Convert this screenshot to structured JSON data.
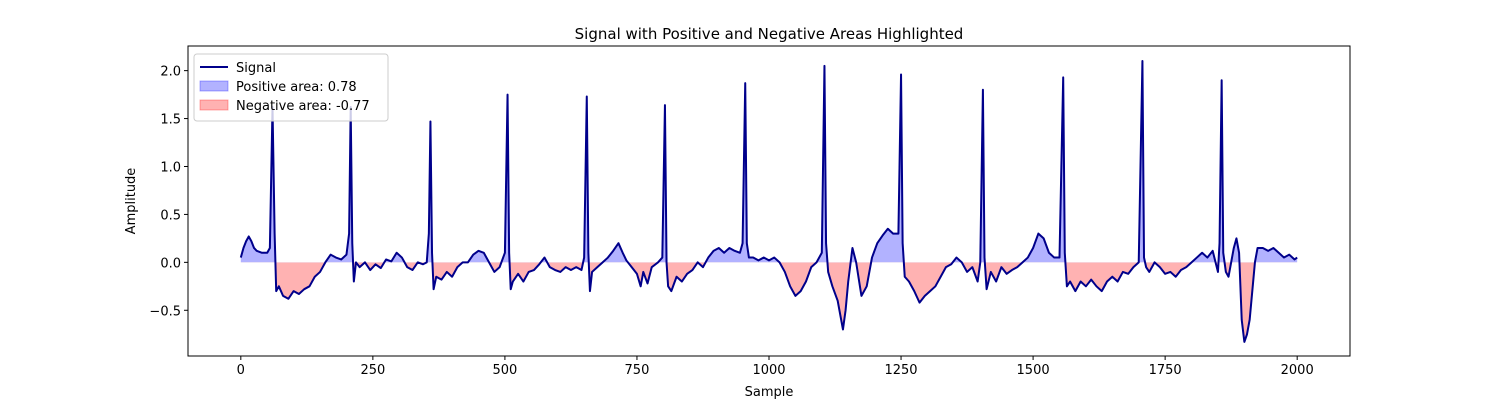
{
  "chart_data": {
    "type": "line",
    "title": "Signal with Positive and Negative Areas Highlighted",
    "xlabel": "Sample",
    "ylabel": "Amplitude",
    "x": [
      0,
      5,
      10,
      15,
      20,
      25,
      30,
      40,
      50,
      55,
      60,
      64,
      67,
      72,
      80,
      90,
      100,
      110,
      120,
      130,
      140,
      150,
      160,
      170,
      180,
      190,
      200,
      205,
      208,
      211,
      214,
      218,
      225,
      235,
      245,
      255,
      265,
      275,
      285,
      295,
      305,
      315,
      325,
      335,
      345,
      352,
      356,
      359,
      362,
      365,
      370,
      380,
      390,
      400,
      410,
      420,
      430,
      440,
      450,
      460,
      470,
      480,
      490,
      500,
      505,
      508,
      511,
      515,
      525,
      535,
      545,
      555,
      565,
      575,
      585,
      595,
      605,
      615,
      625,
      635,
      645,
      650,
      655,
      658,
      661,
      665,
      675,
      685,
      695,
      705,
      715,
      723,
      730,
      740,
      750,
      757,
      762,
      770,
      778,
      790,
      798,
      803,
      806,
      809,
      815,
      825,
      835,
      845,
      855,
      865,
      875,
      885,
      895,
      905,
      915,
      925,
      935,
      945,
      950,
      955,
      958,
      962,
      970,
      980,
      990,
      1000,
      1010,
      1020,
      1030,
      1040,
      1050,
      1060,
      1070,
      1080,
      1090,
      1100,
      1105,
      1108,
      1112,
      1120,
      1130,
      1140,
      1145,
      1150,
      1158,
      1165,
      1175,
      1185,
      1195,
      1205,
      1215,
      1225,
      1235,
      1245,
      1250,
      1253,
      1257,
      1265,
      1275,
      1285,
      1295,
      1305,
      1315,
      1325,
      1335,
      1345,
      1355,
      1365,
      1375,
      1385,
      1395,
      1400,
      1405,
      1408,
      1412,
      1420,
      1430,
      1440,
      1450,
      1460,
      1470,
      1480,
      1490,
      1500,
      1510,
      1520,
      1530,
      1540,
      1550,
      1557,
      1560,
      1564,
      1570,
      1580,
      1590,
      1600,
      1610,
      1620,
      1630,
      1640,
      1650,
      1660,
      1670,
      1680,
      1690,
      1700,
      1707,
      1710,
      1714,
      1720,
      1730,
      1740,
      1750,
      1760,
      1770,
      1780,
      1790,
      1800,
      1810,
      1820,
      1830,
      1840,
      1850,
      1853,
      1857,
      1860,
      1865,
      1870,
      1880,
      1885,
      1890,
      1895,
      1900,
      1905,
      1910,
      1915,
      1920,
      1925,
      1935,
      1945,
      1955,
      1965,
      1975,
      1985,
      1995,
      2000
    ],
    "series": [
      {
        "name": "Signal",
        "color": "#00008b",
        "values": [
          0.05,
          0.15,
          0.22,
          0.27,
          0.22,
          0.15,
          0.12,
          0.1,
          0.1,
          0.15,
          1.62,
          0.3,
          -0.3,
          -0.25,
          -0.35,
          -0.38,
          -0.3,
          -0.33,
          -0.28,
          -0.25,
          -0.15,
          -0.1,
          0,
          0.08,
          0.05,
          0.03,
          0.08,
          0.3,
          1.62,
          0.2,
          -0.2,
          0,
          -0.05,
          0,
          -0.08,
          -0.02,
          -0.06,
          0.03,
          0.01,
          0.1,
          0.05,
          -0.05,
          -0.08,
          0,
          -0.02,
          0,
          0.3,
          1.47,
          0.1,
          -0.28,
          -0.15,
          -0.18,
          -0.1,
          -0.15,
          -0.05,
          0,
          0,
          0.08,
          0.12,
          0.1,
          0,
          -0.1,
          -0.05,
          0.1,
          1.75,
          0.1,
          -0.28,
          -0.2,
          -0.12,
          -0.2,
          -0.1,
          -0.08,
          -0.02,
          0.05,
          -0.05,
          -0.08,
          -0.1,
          -0.05,
          -0.08,
          -0.05,
          -0.08,
          0.05,
          1.73,
          0.1,
          -0.3,
          -0.1,
          -0.05,
          0,
          0.05,
          0.12,
          0.2,
          0.1,
          0.02,
          -0.05,
          -0.12,
          -0.25,
          -0.1,
          -0.22,
          -0.05,
          0,
          0.05,
          1.64,
          0,
          -0.25,
          -0.3,
          -0.15,
          -0.2,
          -0.12,
          -0.08,
          0,
          -0.05,
          0.05,
          0.12,
          0.15,
          0.1,
          0.15,
          0.12,
          0.1,
          0.2,
          1.87,
          0.2,
          0.05,
          0.05,
          0.02,
          0.05,
          0.02,
          0.05,
          0,
          -0.1,
          -0.25,
          -0.35,
          -0.3,
          -0.2,
          -0.05,
          0,
          0.1,
          2.05,
          0.2,
          -0.1,
          -0.25,
          -0.4,
          -0.7,
          -0.5,
          -0.2,
          0.15,
          0,
          -0.35,
          -0.25,
          0.05,
          0.2,
          0.28,
          0.35,
          0.3,
          0.3,
          1.96,
          0.2,
          -0.15,
          -0.2,
          -0.3,
          -0.42,
          -0.35,
          -0.3,
          -0.25,
          -0.15,
          -0.05,
          -0.02,
          0.05,
          0,
          -0.1,
          -0.05,
          -0.2,
          0,
          1.8,
          0.05,
          -0.28,
          -0.1,
          -0.2,
          -0.05,
          -0.12,
          -0.08,
          -0.05,
          0,
          0.05,
          0.15,
          0.3,
          0.25,
          0.1,
          0.05,
          0.05,
          1.93,
          0.1,
          -0.25,
          -0.2,
          -0.3,
          -0.2,
          -0.25,
          -0.18,
          -0.25,
          -0.3,
          -0.2,
          -0.15,
          -0.2,
          -0.1,
          -0.12,
          -0.05,
          0,
          2.1,
          0.05,
          -0.05,
          -0.1,
          0,
          -0.05,
          -0.12,
          -0.1,
          -0.15,
          -0.08,
          -0.05,
          0,
          0.05,
          0.1,
          0.05,
          0.12,
          -0.1,
          0.2,
          1.9,
          0.1,
          -0.1,
          -0.15,
          0.15,
          0.25,
          0.1,
          -0.6,
          -0.83,
          -0.75,
          -0.6,
          -0.3,
          0,
          0.15,
          0.15,
          0.12,
          0.15,
          0.1,
          0.05,
          0.08,
          0.03,
          0.05
        ]
      }
    ],
    "fills": [
      {
        "name": "Positive area: 0.78",
        "color": "#0000ff"
      },
      {
        "name": "Negative area: -0.77",
        "color": "#ff0000"
      }
    ],
    "xlim": [
      -100,
      2100
    ],
    "xticks": [
      0,
      250,
      500,
      750,
      1000,
      1250,
      1500,
      1750,
      2000
    ],
    "ylim": [
      -0.977,
      2.257
    ],
    "yticks": [
      {
        "value": -0.5,
        "label": "−0.5"
      },
      {
        "value": 0,
        "label": "0.0"
      },
      {
        "value": 0.5,
        "label": "0.5"
      },
      {
        "value": 1,
        "label": "1.0"
      },
      {
        "value": 1.5,
        "label": "1.5"
      },
      {
        "value": 2,
        "label": "2.0"
      }
    ],
    "legend": "upper left"
  }
}
